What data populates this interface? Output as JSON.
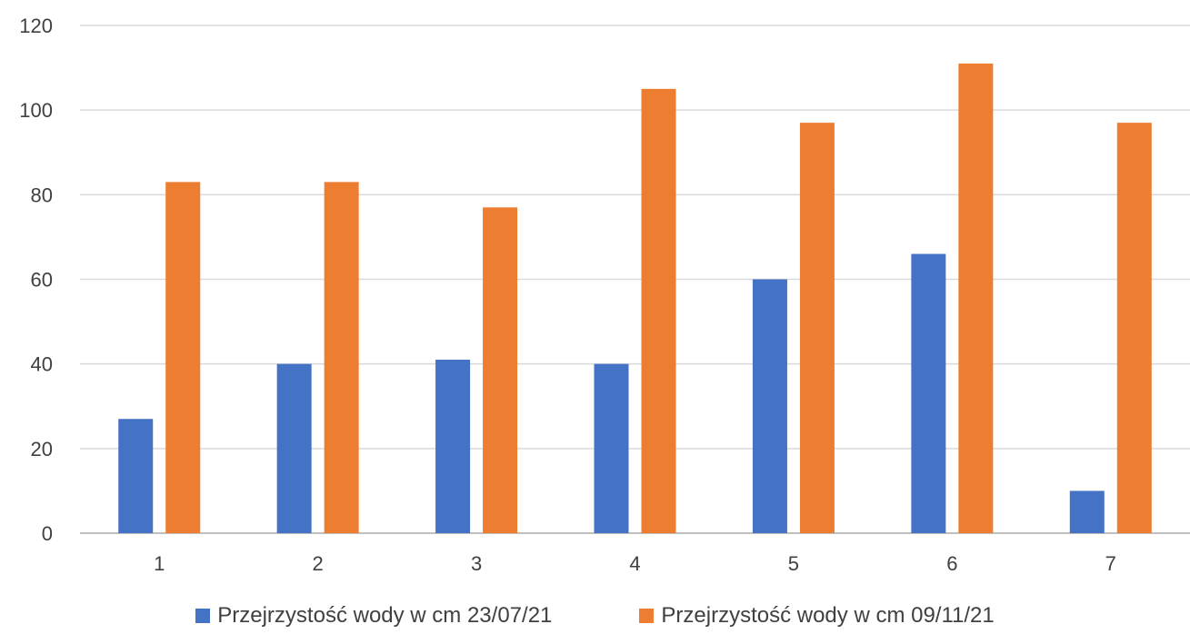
{
  "chart_data": {
    "type": "bar",
    "categories": [
      "1",
      "2",
      "3",
      "4",
      "5",
      "6",
      "7"
    ],
    "series": [
      {
        "name": "Przejrzystość wody w cm 23/07/21",
        "values": [
          27,
          40,
          41,
          40,
          60,
          66,
          10
        ],
        "color": "#4472C4"
      },
      {
        "name": "Przejrzystość wody w cm 09/11/21",
        "values": [
          83,
          83,
          77,
          105,
          97,
          111,
          97
        ],
        "color": "#ED7D31"
      }
    ],
    "ylim": [
      0,
      120
    ],
    "yticks": [
      "0",
      "20",
      "40",
      "60",
      "80",
      "100",
      "120"
    ],
    "grid": true,
    "legend_position": "bottom"
  }
}
